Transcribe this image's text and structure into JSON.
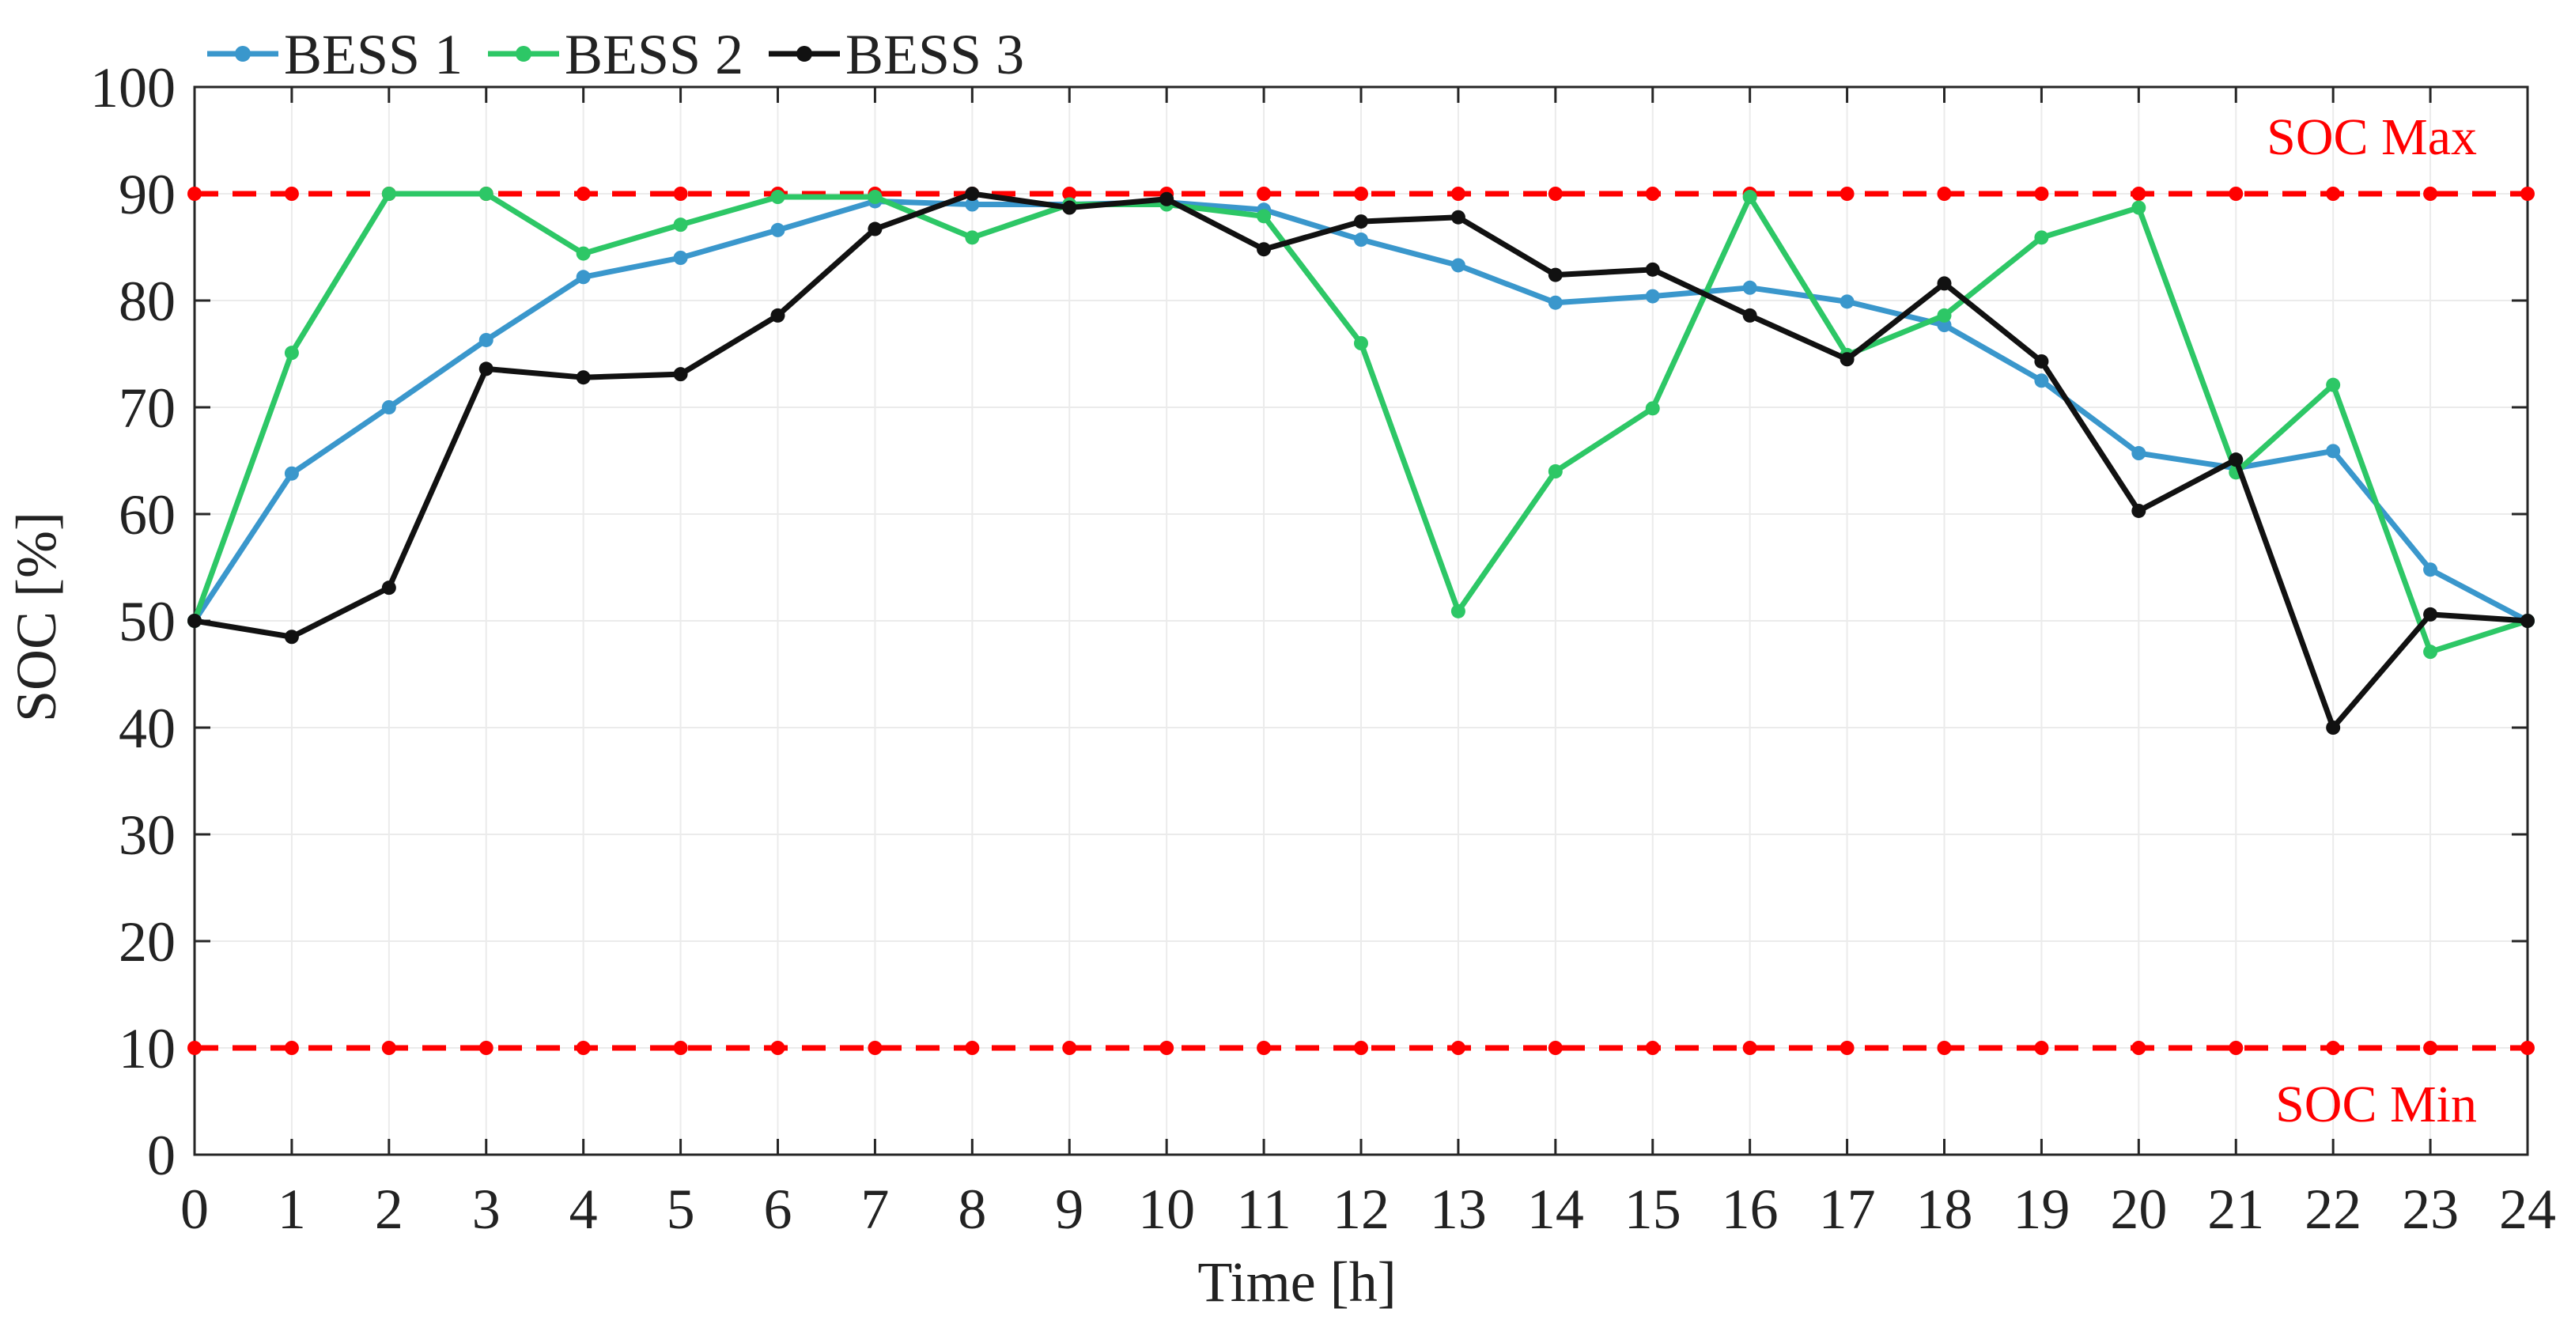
{
  "chart_data": {
    "type": "line",
    "title": "",
    "xlabel": "Time [h]",
    "ylabel": "SOC [%]",
    "xlim": [
      0,
      24
    ],
    "ylim": [
      0,
      100
    ],
    "x_ticks": [
      0,
      1,
      2,
      3,
      4,
      5,
      6,
      7,
      8,
      9,
      10,
      11,
      12,
      13,
      14,
      15,
      16,
      17,
      18,
      19,
      20,
      21,
      22,
      23,
      24
    ],
    "y_ticks": [
      0,
      10,
      20,
      30,
      40,
      50,
      60,
      70,
      80,
      90,
      100
    ],
    "grid": true,
    "legend": {
      "position": "top-left, outside",
      "orientation": "horizontal",
      "entries": [
        "BESS 1",
        "BESS 2",
        "BESS 3"
      ]
    },
    "x": [
      0,
      1,
      2,
      3,
      4,
      5,
      6,
      7,
      8,
      9,
      10,
      11,
      12,
      13,
      14,
      15,
      16,
      17,
      18,
      19,
      20,
      21,
      22,
      23,
      24
    ],
    "series": [
      {
        "name": "BESS 1",
        "color": "#3a97cc",
        "values": [
          50,
          63.8,
          70,
          76.3,
          82.2,
          84,
          86.6,
          89.3,
          89,
          89,
          89.2,
          88.5,
          85.7,
          83.3,
          79.8,
          80.4,
          81.2,
          79.9,
          77.7,
          72.5,
          65.7,
          64.3,
          65.9,
          54.8,
          50
        ]
      },
      {
        "name": "BESS 2",
        "color": "#2dc766",
        "values": [
          50,
          75.1,
          90,
          90,
          84.4,
          87.1,
          89.7,
          89.7,
          85.9,
          89,
          89,
          87.9,
          76,
          50.9,
          64,
          69.9,
          89.7,
          74.9,
          78.6,
          85.9,
          88.7,
          63.9,
          72.1,
          47.1,
          50
        ]
      },
      {
        "name": "BESS 3",
        "color": "#111111",
        "values": [
          50,
          48.5,
          53.1,
          73.6,
          72.8,
          73.1,
          78.6,
          86.7,
          90,
          88.7,
          89.5,
          84.8,
          87.4,
          87.8,
          82.4,
          82.9,
          78.6,
          74.5,
          81.6,
          74.3,
          60.3,
          65.1,
          40,
          50.6,
          50
        ]
      }
    ],
    "reference_lines": [
      {
        "label": "SOC Max",
        "value": 90,
        "color": "#ff0000",
        "style": "dashed"
      },
      {
        "label": "SOC Min",
        "value": 10,
        "color": "#ff0000",
        "style": "dashed"
      }
    ]
  }
}
